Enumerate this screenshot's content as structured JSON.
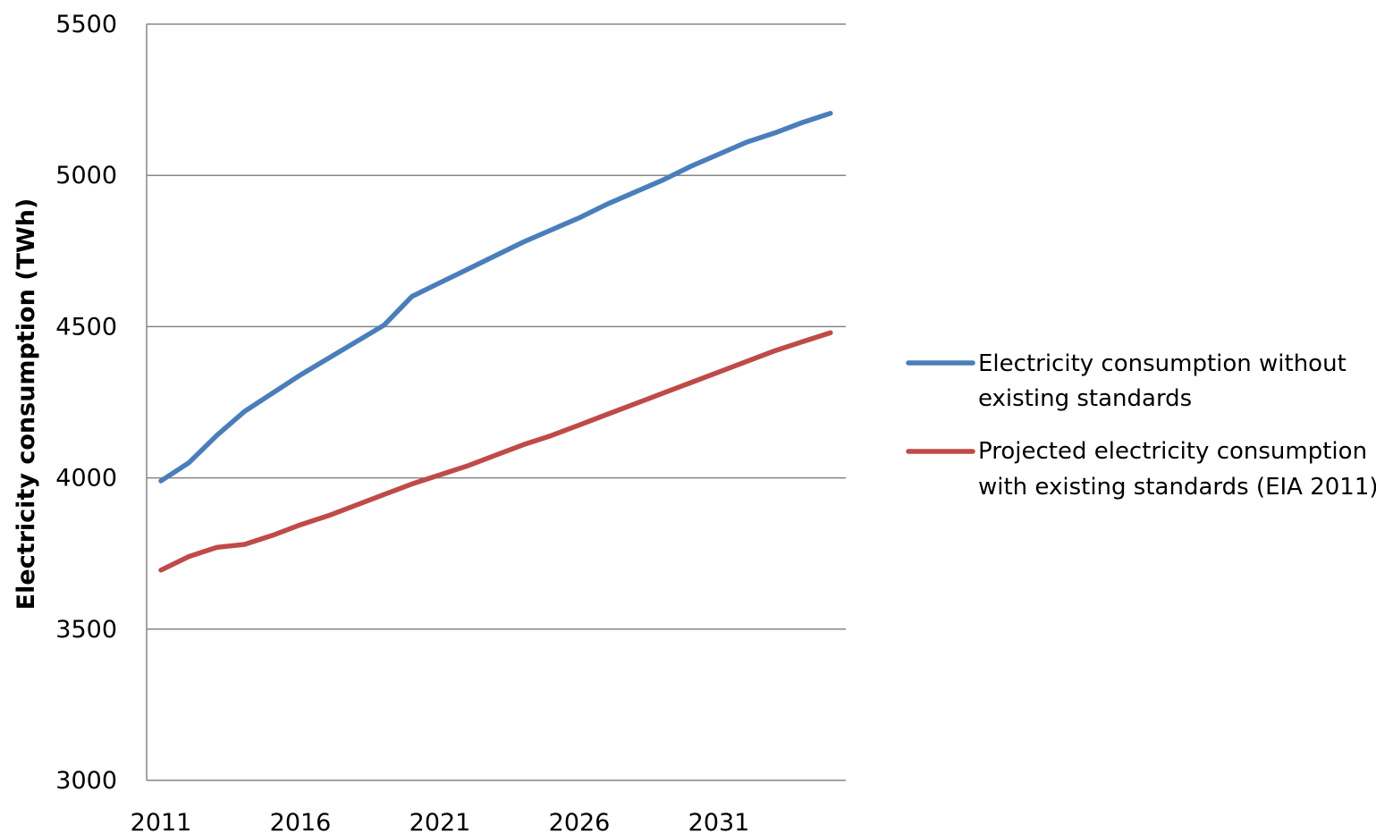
{
  "chart_data": {
    "type": "line",
    "title": "",
    "xlabel": "",
    "ylabel": "Electricity consumption (TWh)",
    "xlim": [
      2011,
      2035
    ],
    "ylim": [
      3000,
      5500
    ],
    "x_ticks": [
      2011,
      2016,
      2021,
      2026,
      2031
    ],
    "y_ticks": [
      3000,
      3500,
      4000,
      4500,
      5000,
      5500
    ],
    "grid": "horizontal",
    "legend_position": "right",
    "x": [
      2011,
      2012,
      2013,
      2014,
      2015,
      2016,
      2017,
      2018,
      2019,
      2020,
      2021,
      2022,
      2023,
      2024,
      2025,
      2026,
      2027,
      2028,
      2029,
      2030,
      2031,
      2032,
      2033,
      2034,
      2035
    ],
    "series": [
      {
        "name": "Electricity consumption without existing standards",
        "legend_lines": [
          "Electricity consumption without",
          "existing standards"
        ],
        "color": "#4a7ebb",
        "values": [
          3990,
          4050,
          4140,
          4220,
          4280,
          4340,
          4395,
          4450,
          4505,
          4600,
          4645,
          4690,
          4735,
          4780,
          4820,
          4860,
          4905,
          4945,
          4985,
          5030,
          5070,
          5110,
          5140,
          5175,
          5205
        ]
      },
      {
        "name": "Projected electricity consumption with existing standards (EIA 2011)",
        "legend_lines": [
          "Projected electricity consumption",
          "with existing standards (EIA 2011)"
        ],
        "color": "#be4b48",
        "values": [
          3695,
          3740,
          3770,
          3780,
          3810,
          3845,
          3875,
          3910,
          3945,
          3980,
          4010,
          4040,
          4075,
          4110,
          4140,
          4175,
          4210,
          4245,
          4280,
          4315,
          4350,
          4385,
          4420,
          4450,
          4480
        ]
      }
    ]
  }
}
